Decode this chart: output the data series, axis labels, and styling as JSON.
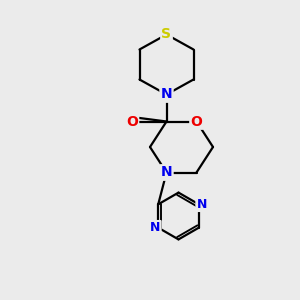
{
  "background_color": "#ebebeb",
  "atom_colors": {
    "S": "#cccc00",
    "N": "#0000ee",
    "O": "#ee0000",
    "C": "#000000"
  },
  "bond_color": "#000000",
  "line_width": 1.6,
  "font_size_atoms": 10,
  "fig_size": [
    3.0,
    3.0
  ],
  "dpi": 100
}
